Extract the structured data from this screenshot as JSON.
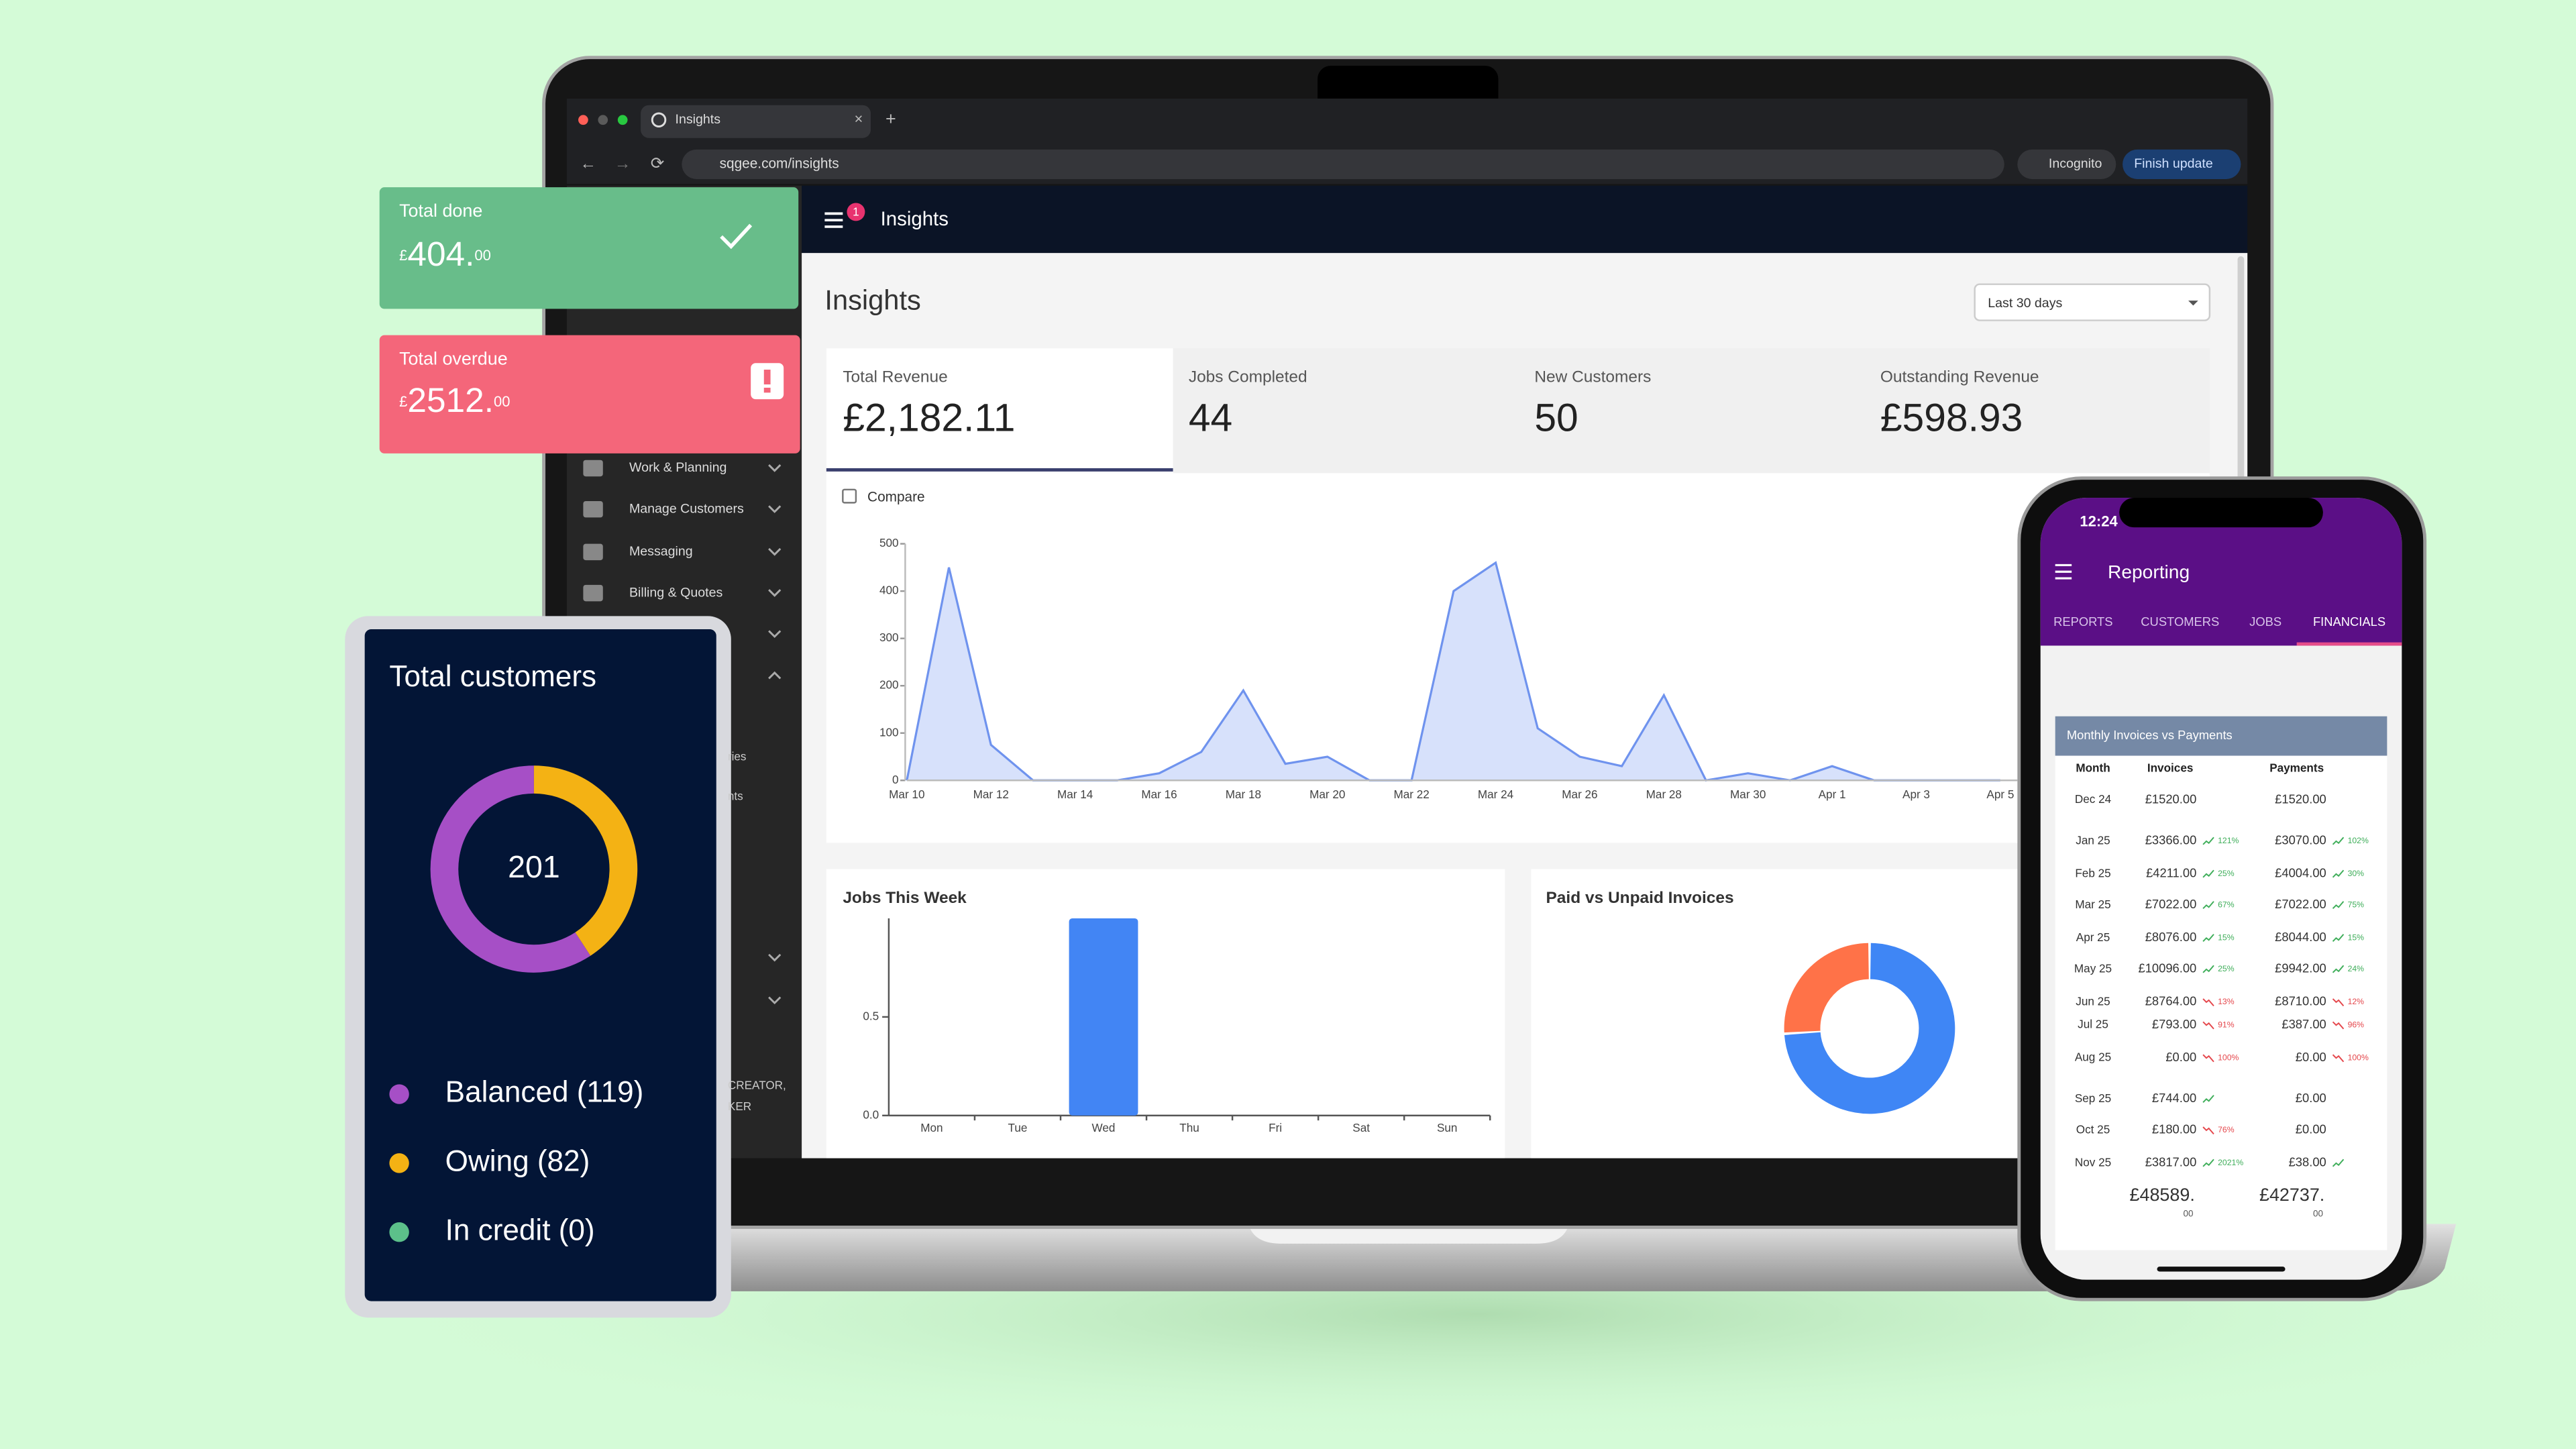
{
  "browser": {
    "tab_title": "Insights",
    "url": "sqgee.com/insights",
    "incognito": "Incognito",
    "update_button": "Finish update"
  },
  "app_bar": {
    "notification_count": "1",
    "title": "Insights"
  },
  "sidebar": {
    "menu": [
      "Work & Planning",
      "Manage Customers",
      "Messaging",
      "Billing & Quotes"
    ],
    "fragments": [
      "ries",
      "nts",
      "CREATOR,",
      "KER"
    ]
  },
  "page": {
    "heading": "Insights",
    "date_range": "Last 30 days",
    "compare_label": "Compare"
  },
  "kpis": [
    {
      "label": "Total Revenue",
      "value": "£2,182.11"
    },
    {
      "label": "Jobs Completed",
      "value": "44"
    },
    {
      "label": "New Customers",
      "value": "50"
    },
    {
      "label": "Outstanding Revenue",
      "value": "£598.93"
    }
  ],
  "revenue_chart": {
    "type": "area",
    "x": [
      "Mar 10",
      null,
      "Mar 12",
      null,
      "Mar 14",
      null,
      "Mar 16",
      null,
      "Mar 18",
      null,
      "Mar 20",
      null,
      "Mar 22",
      null,
      "Mar 24",
      null,
      "Mar 26",
      null,
      "Mar 28",
      null,
      "Mar 30",
      null,
      "Apr 1",
      null,
      "Apr 3",
      null,
      "Apr 5"
    ],
    "values": [
      0,
      450,
      75,
      0,
      0,
      0,
      15,
      60,
      190,
      35,
      50,
      0,
      0,
      400,
      460,
      110,
      50,
      30,
      180,
      0,
      15,
      0,
      30,
      0,
      0,
      0,
      0
    ],
    "ylim": [
      0,
      500
    ],
    "yticks": [
      0,
      100,
      200,
      300,
      400,
      500
    ],
    "color": "#6f93ee",
    "fill": "#d7e1fb"
  },
  "jobs_chart": {
    "type": "bar",
    "title": "Jobs This Week",
    "categories": [
      "Mon",
      "Tue",
      "Wed",
      "Thu",
      "Fri",
      "Sat",
      "Sun"
    ],
    "values": [
      0,
      0,
      1,
      0,
      0,
      0,
      0
    ],
    "ylim": [
      0,
      1
    ],
    "yticks": [
      {
        "value": 0,
        "label": "0.0"
      },
      {
        "value": 0.5,
        "label": "0.5"
      }
    ],
    "color": "#4285f4"
  },
  "invoices_chart": {
    "type": "donut",
    "title": "Paid vs Unpaid Invoices",
    "values": [
      74,
      26
    ],
    "colors": [
      "#3f86f5",
      "#ff7248"
    ]
  },
  "total_done": {
    "label": "Total done",
    "currency": "£",
    "amount": "404.",
    "fraction": "00"
  },
  "total_overdue": {
    "label": "Total overdue",
    "currency": "£",
    "amount": "2512.",
    "fraction": "00"
  },
  "customers_card": {
    "type": "donut",
    "title": "Total customers",
    "total": 201,
    "series": [
      {
        "name": "Balanced (119)",
        "value": 119,
        "color": "#a64fc6"
      },
      {
        "name": "Owing (82)",
        "value": 82,
        "color": "#f4b214"
      },
      {
        "name": "In credit (0)",
        "value": 0,
        "color": "#5cc08a"
      }
    ]
  },
  "phone": {
    "time": "12:24",
    "title": "Reporting",
    "tabs": [
      "REPORTS",
      "CUSTOMERS",
      "JOBS",
      "FINANCIALS"
    ],
    "active_tab": 3,
    "card_title": "Monthly Invoices vs Payments",
    "columns": [
      "Month",
      "Invoices",
      "Payments"
    ],
    "rows": [
      {
        "month": "Dec 24",
        "invoices": "£1520.00",
        "invoices_change": null,
        "invoices_trend": null,
        "payments": "£1520.00",
        "payments_change": null,
        "payments_trend": null
      },
      {
        "month": "Jan 25",
        "invoices": "£3366.00",
        "invoices_change": "121%",
        "invoices_trend": "up",
        "payments": "£3070.00",
        "payments_change": "102%",
        "payments_trend": "up"
      },
      {
        "month": "Feb 25",
        "invoices": "£4211.00",
        "invoices_change": "25%",
        "invoices_trend": "up",
        "payments": "£4004.00",
        "payments_change": "30%",
        "payments_trend": "up"
      },
      {
        "month": "Mar 25",
        "invoices": "£7022.00",
        "invoices_change": "67%",
        "invoices_trend": "up",
        "payments": "£7022.00",
        "payments_change": "75%",
        "payments_trend": "up"
      },
      {
        "month": "Apr 25",
        "invoices": "£8076.00",
        "invoices_change": "15%",
        "invoices_trend": "up",
        "payments": "£8044.00",
        "payments_change": "15%",
        "payments_trend": "up"
      },
      {
        "month": "May 25",
        "invoices": "£10096.00",
        "invoices_change": "25%",
        "invoices_trend": "up",
        "payments": "£9942.00",
        "payments_change": "24%",
        "payments_trend": "up"
      },
      {
        "month": "Jun 25",
        "invoices": "£8764.00",
        "invoices_change": "13%",
        "invoices_trend": "down",
        "payments": "£8710.00",
        "payments_change": "12%",
        "payments_trend": "down"
      },
      {
        "month": "Jul 25",
        "invoices": "£793.00",
        "invoices_change": "91%",
        "invoices_trend": "down",
        "payments": "£387.00",
        "payments_change": "96%",
        "payments_trend": "down"
      },
      {
        "month": "Aug 25",
        "invoices": "£0.00",
        "invoices_change": "100%",
        "invoices_trend": "down",
        "payments": "£0.00",
        "payments_change": "100%",
        "payments_trend": "down"
      },
      {
        "month": "Sep 25",
        "invoices": "£744.00",
        "invoices_change": null,
        "invoices_trend": "up",
        "payments": "£0.00",
        "payments_change": null,
        "payments_trend": null
      },
      {
        "month": "Oct 25",
        "invoices": "£180.00",
        "invoices_change": "76%",
        "invoices_trend": "down",
        "payments": "£0.00",
        "payments_change": null,
        "payments_trend": null
      },
      {
        "month": "Nov 25",
        "invoices": "£3817.00",
        "invoices_change": "2021%",
        "invoices_trend": "up",
        "payments": "£38.00",
        "payments_change": null,
        "payments_trend": "up"
      }
    ],
    "totals": {
      "invoices": "£48589.",
      "invoices_fraction": "00",
      "payments": "£42737.",
      "payments_fraction": "00"
    }
  }
}
